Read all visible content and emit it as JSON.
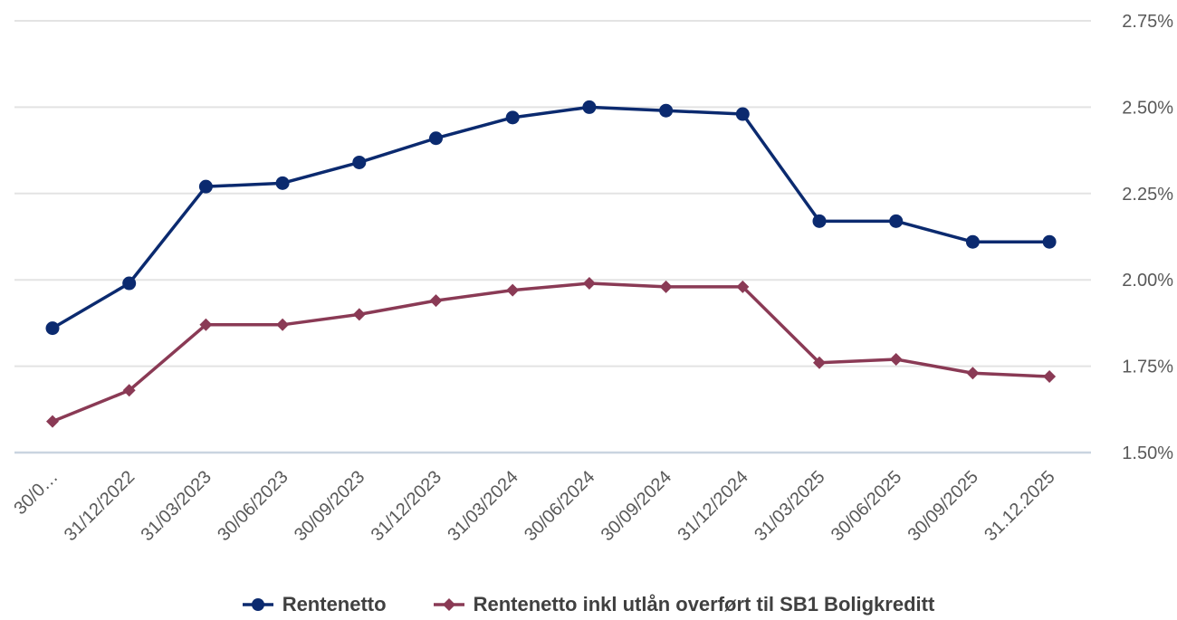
{
  "chart_data": {
    "type": "line",
    "categories": [
      "30/0…",
      "31/12/2022",
      "31/03/2023",
      "30/06/2023",
      "30/09/2023",
      "31/12/2023",
      "31/03/2024",
      "30/06/2024",
      "30/09/2024",
      "31/12/2024",
      "31/03/2025",
      "30/06/2025",
      "30/09/2025",
      "31.12.2025"
    ],
    "series": [
      {
        "name": "Rentenetto",
        "color": "#0b2a6f",
        "marker": "circle",
        "values": [
          1.86,
          1.99,
          2.27,
          2.28,
          2.34,
          2.41,
          2.47,
          2.5,
          2.49,
          2.48,
          2.17,
          2.17,
          2.11,
          2.11
        ]
      },
      {
        "name": "Rentenetto inkl utlån overført til SB1 Boligkreditt",
        "color": "#8a3a55",
        "marker": "diamond",
        "values": [
          1.59,
          1.68,
          1.87,
          1.87,
          1.9,
          1.94,
          1.97,
          1.99,
          1.98,
          1.98,
          1.76,
          1.77,
          1.73,
          1.72
        ]
      }
    ],
    "yticks": [
      "1.50%",
      "1.75%",
      "2.00%",
      "2.25%",
      "2.50%",
      "2.75%"
    ],
    "ylim": [
      1.5,
      2.75
    ],
    "yaxis_side": "right",
    "grid": true,
    "legend_position": "bottom",
    "title": "",
    "xlabel": "",
    "ylabel": ""
  }
}
